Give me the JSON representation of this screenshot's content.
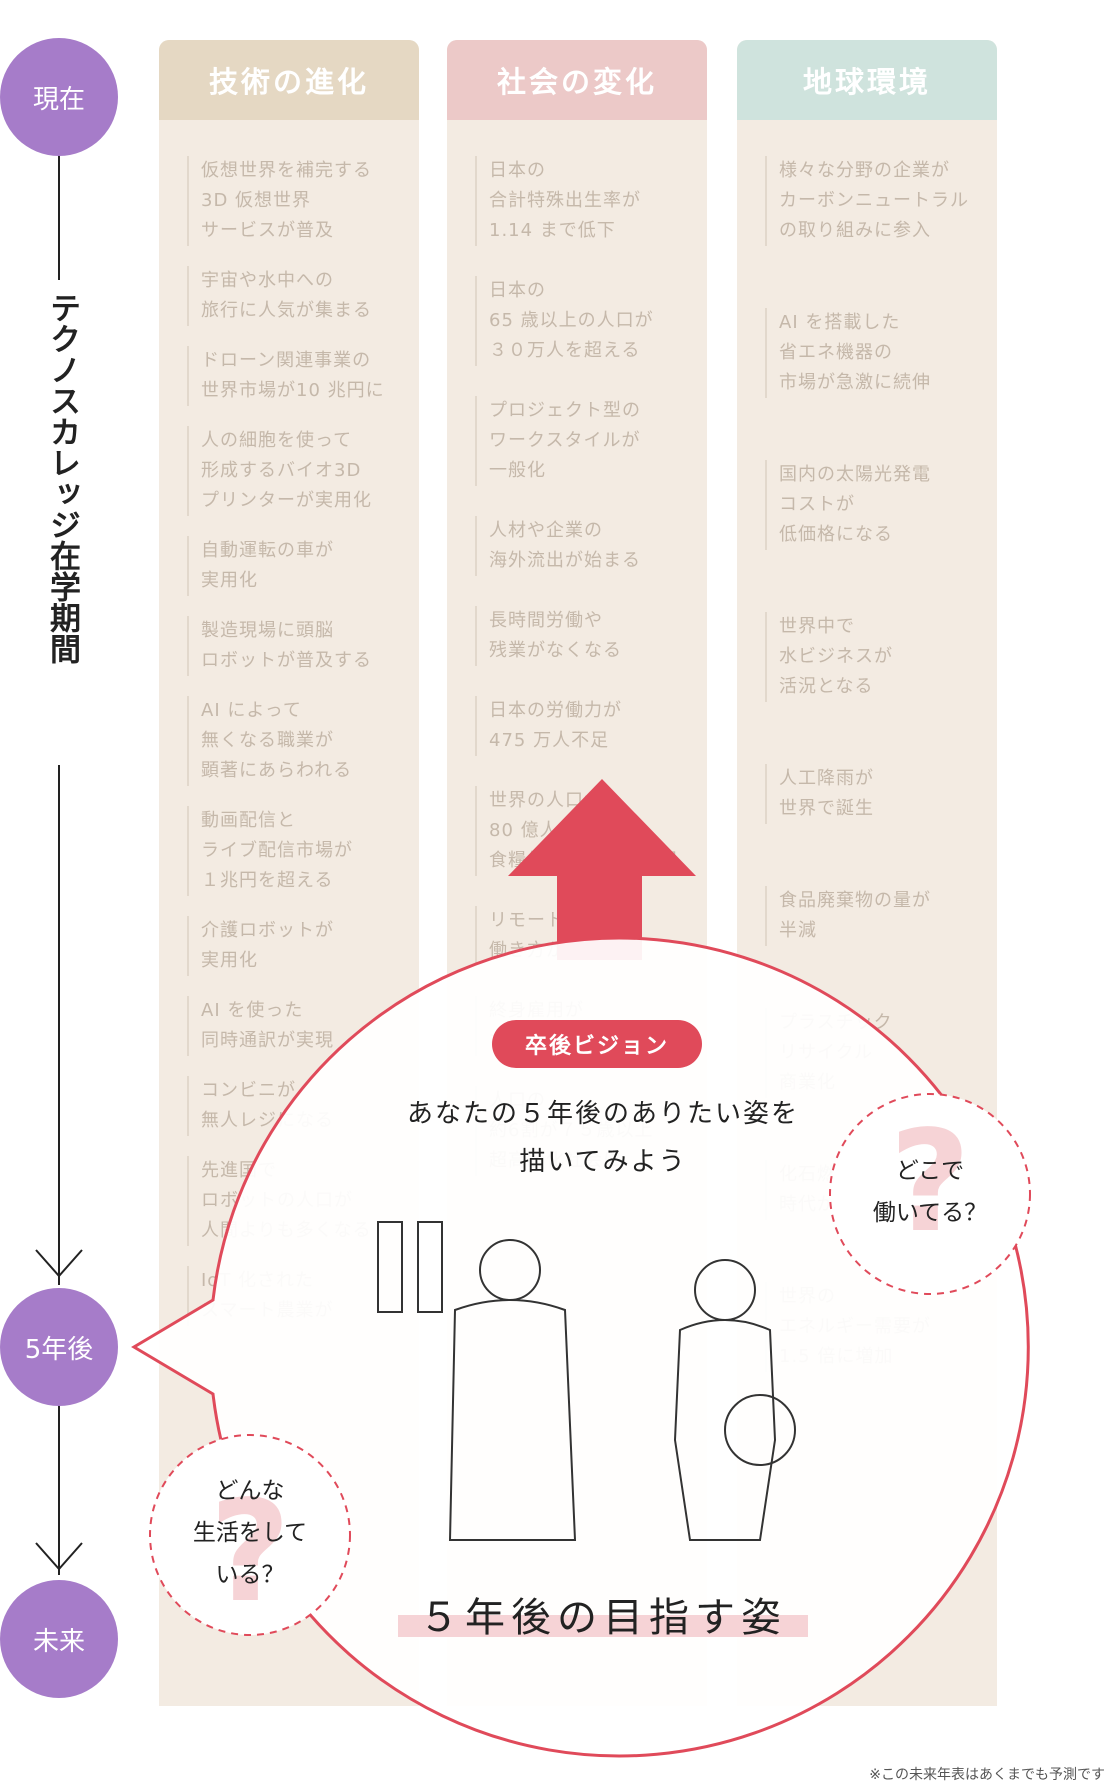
{
  "timeline": {
    "start": "現在",
    "period": "テクノスカレッジ在学期間",
    "middle": "5年後",
    "end": "未来"
  },
  "columns": [
    {
      "title": "技術の進化",
      "items": [
        "仮想世界を補完する\n3D 仮想世界\nサービスが普及",
        "宇宙や水中への\n旅行に人気が集まる",
        "ドローン関連事業の\n世界市場が10 兆円に",
        "人の細胞を使って\n形成するバイオ3D\nプリンターが実用化",
        "自動運転の車が\n実用化",
        "製造現場に頭脳\nロボットが普及する",
        "AI によって\n無くなる職業が\n顕著にあらわれる",
        "動画配信と\nライブ配信市場が\n１兆円を超える",
        "介護ロボットが\n実用化",
        "AI を使った\n同時通訳が実現",
        "コンビニが\n無人レジになる",
        "先進国で\nロボットの人口が\n人間よりも多くなる",
        "IoT 化された\nスマート農業が"
      ]
    },
    {
      "title": "社会の変化",
      "items": [
        "日本の\n合計特殊出生率が\n1.14 まで低下",
        "日本の\n65 歳以上の人口が\n３０万人を超える",
        "プロジェクト型の\nワークスタイルが\n一般化",
        "人材や企業の\n海外流出が始まる",
        "長時間労働や\n残業がなくなる",
        "日本の労働力が\n475 万人不足",
        "世界の人口が\n80 億人を超え\n食糧価格が急激に上昇",
        "リモートによる\n働き方が一般化",
        "終身雇用が\nなくなる",
        "人口の\n約6割が７５歳以上\n超高齢化社会に"
      ]
    },
    {
      "title": "地球環境",
      "items": [
        "様々な分野の企業が\nカーボンニュートラル\nの取り組みに参入",
        "AI を搭載した\n省エネ機器の\n市場が急激に続伸",
        "国内の太陽光発電\nコストが\n低価格になる",
        "世界中で\n水ビジネスが\n活況となる",
        "人工降雨が\n世界で誕生",
        "食品廃棄物の量が\n半減",
        "プラスチック\nリサイクル\n商業化",
        "化石燃料に依存する\n時代が終焉を迎える",
        "世界の\nエネルギー需要が\n1.5 倍に増加"
      ]
    }
  ],
  "vision": {
    "badge": "卒後ビジョン",
    "heading": "あなたの５年後のありたい姿を\n描いてみよう",
    "bubble_right": "どこで\n働いてる？",
    "bubble_left": "どんな\n生活をして\nいる？",
    "title": "５年後の目指す姿"
  },
  "footnote": "※この未来年表はあくまでも予測です"
}
